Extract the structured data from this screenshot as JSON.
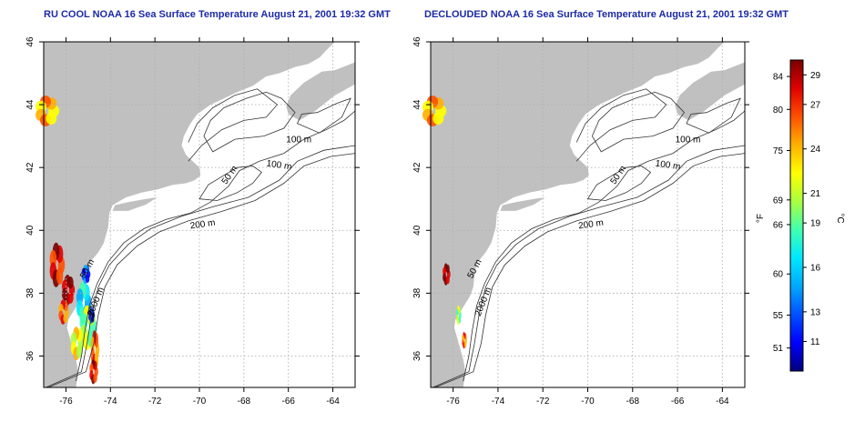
{
  "panels": [
    {
      "title": "RU COOL NOAA 16 Sea Surface Temperature August 21, 2001 19:32 GMT",
      "mode": "raw"
    },
    {
      "title": "DECLOUDED NOAA 16 Sea Surface Temperature August 21, 2001 19:32 GMT",
      "mode": "declouded"
    }
  ],
  "map": {
    "lon_range": [
      -77,
      -63
    ],
    "lat_range": [
      35,
      46
    ],
    "lon_ticks": [
      "-76",
      "-74",
      "-72",
      "-70",
      "-68",
      "-66",
      "-64"
    ],
    "lat_ticks": [
      "36",
      "38",
      "40",
      "42",
      "44",
      "46"
    ],
    "land_color": "#c0c0c0",
    "ocean_color": "#ffffff",
    "grid": "dotted"
  },
  "contour_labels": [
    "100 m",
    "100 m",
    "50 m",
    "200 m",
    "50 m",
    "2000 m"
  ],
  "colorbar": {
    "fahrenheit_label": "°F",
    "celsius_label": "°C",
    "fahrenheit_ticks": [
      "84",
      "80",
      "75",
      "69",
      "66",
      "60",
      "55",
      "51"
    ],
    "celsius_ticks": [
      "29",
      "27",
      "24",
      "21",
      "19",
      "16",
      "13",
      "11"
    ],
    "celsius_min": 9,
    "celsius_max": 30,
    "colors": [
      "#00007a",
      "#0000ff",
      "#0050ff",
      "#00a8ff",
      "#00e8ff",
      "#40ffb0",
      "#a8ff40",
      "#ffff00",
      "#ffb000",
      "#ff5000",
      "#e00000",
      "#7a0000"
    ]
  }
}
